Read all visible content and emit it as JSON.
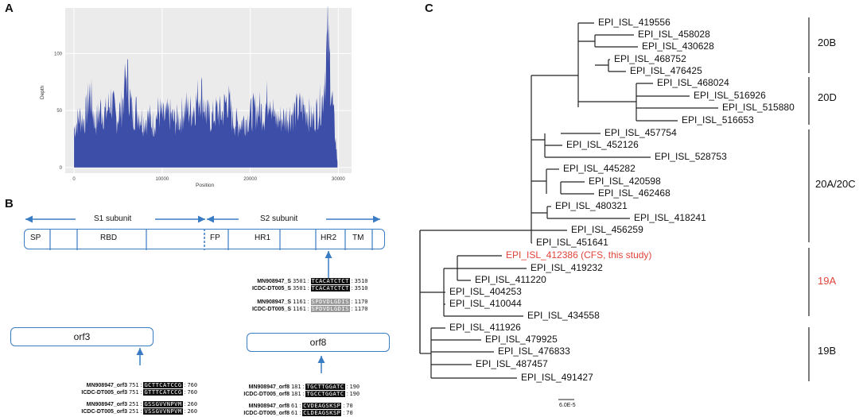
{
  "panelA": {
    "letter": "A",
    "ylabel": "Depth",
    "xlabel": "Position",
    "yticks": [
      "0",
      "50",
      "100"
    ],
    "xticks": [
      "0",
      "10000",
      "20000",
      "30000"
    ]
  },
  "chart_data": {
    "type": "area",
    "title": "",
    "xlabel": "Position",
    "ylabel": "Depth",
    "xlim": [
      0,
      30000
    ],
    "ylim": [
      0,
      135
    ],
    "x": [
      0,
      600,
      1200,
      1800,
      2400,
      3000,
      3600,
      4200,
      4800,
      5400,
      6000,
      6600,
      7200,
      7800,
      8400,
      9000,
      9600,
      10200,
      10800,
      11400,
      12000,
      12600,
      13200,
      13800,
      14400,
      15000,
      15600,
      16200,
      16800,
      17400,
      18000,
      18600,
      19200,
      19800,
      20400,
      21000,
      21600,
      22200,
      22800,
      23400,
      24000,
      24600,
      25200,
      25800,
      26400,
      27000,
      27600,
      28200,
      28800,
      29400,
      29900
    ],
    "series": [
      {
        "values": [
          40,
          52,
          48,
          78,
          45,
          60,
          55,
          70,
          50,
          62,
          96,
          55,
          60,
          48,
          52,
          45,
          58,
          50,
          55,
          48,
          50,
          62,
          58,
          65,
          80,
          55,
          50,
          58,
          55,
          72,
          50,
          45,
          48,
          52,
          58,
          60,
          55,
          82,
          48,
          50,
          52,
          55,
          58,
          62,
          60,
          48,
          58,
          70,
          132,
          60,
          5
        ]
      }
    ],
    "grid": true
  },
  "panelB": {
    "letter": "B",
    "s1_label": "S1 subunit",
    "s2_label": "S2 subunit",
    "segments": [
      "SP",
      "RBD",
      "FP",
      "HR1",
      "HR2",
      "TM"
    ],
    "orf3_label": "orf3",
    "orf8_label": "orf8",
    "alignments": {
      "s_nt": [
        {
          "name": "MN908947_S",
          "start": "3501",
          "seq": "TCACATCTCT",
          "end": "3510"
        },
        {
          "name": "ICDC-DT005_S",
          "start": "3501",
          "seq": "TCACATCTCT",
          "end": "3510"
        }
      ],
      "s_aa": [
        {
          "name": "MN908947_S",
          "start": "1161",
          "seq": "SPDVDLGDIS",
          "end": "1170"
        },
        {
          "name": "ICDC-DT005_S",
          "start": "1161",
          "seq": "SPDVDLGDIS",
          "end": "1170"
        }
      ],
      "orf3_nt": [
        {
          "name": "MN908947_orf3",
          "start": "751",
          "seq": "GCTTCATCCG",
          "end": "760"
        },
        {
          "name": "ICDC-DT005_orf3",
          "start": "751",
          "seq": "GTTTCATCCG",
          "end": "760"
        }
      ],
      "orf3_aa": [
        {
          "name": "MN908947_orf3",
          "start": "251",
          "seq": "GSSGVVNPVM",
          "end": "260"
        },
        {
          "name": "ICDC-DT005_orf3",
          "start": "251",
          "seq": "VSSGVVNPVM",
          "end": "260"
        }
      ],
      "orf8_nt": [
        {
          "name": "MN908947_orf8",
          "start": "181",
          "seq": "TGCTTGGATC",
          "end": "190"
        },
        {
          "name": "ICDC-DT005_orf8",
          "start": "181",
          "seq": "TGCCTGGATC",
          "end": "190"
        }
      ],
      "orf8_aa": [
        {
          "name": "MN908947_orf8",
          "start": "61",
          "seq": "CVDEAGSKSP",
          "end": "70"
        },
        {
          "name": "ICDC-DT005_orf8",
          "start": "61",
          "seq": "CLDEAGSKSP",
          "end": "70"
        }
      ]
    }
  },
  "panelC": {
    "letter": "C",
    "leaves": [
      "EPI_ISL_419556",
      "EPI_ISL_458028",
      "EPI_ISL_430628",
      "EPI_ISL_468752",
      "EPI_ISL_476425",
      "EPI_ISL_468024",
      "EPI_ISL_516926",
      "EPI_ISL_515880",
      "EPI_ISL_516653",
      "EPI_ISL_457754",
      "EPI_ISL_452126",
      "EPI_ISL_528753",
      "EPI_ISL_445282",
      "EPI_ISL_420598",
      "EPI_ISL_462468",
      "EPI_ISL_480321",
      "EPI_ISL_418241",
      "EPI_ISL_456259",
      "EPI_ISL_451641",
      "EPI_ISL_412386 (CFS, this study)",
      "EPI_ISL_419232",
      "EPI_ISL_411220",
      "EPI_ISL_404253",
      "EPI_ISL_410044",
      "EPI_ISL_434558",
      "EPI_ISL_411926",
      "EPI_ISL_479925",
      "EPI_ISL_476833",
      "EPI_ISL_487457",
      "EPI_ISL_491427"
    ],
    "clades": [
      "20B",
      "20D",
      "20A/20C",
      "19A",
      "19B"
    ],
    "scale": "6.0E-5",
    "highlight_color": "#e0443a",
    "line_color": "#222222"
  }
}
